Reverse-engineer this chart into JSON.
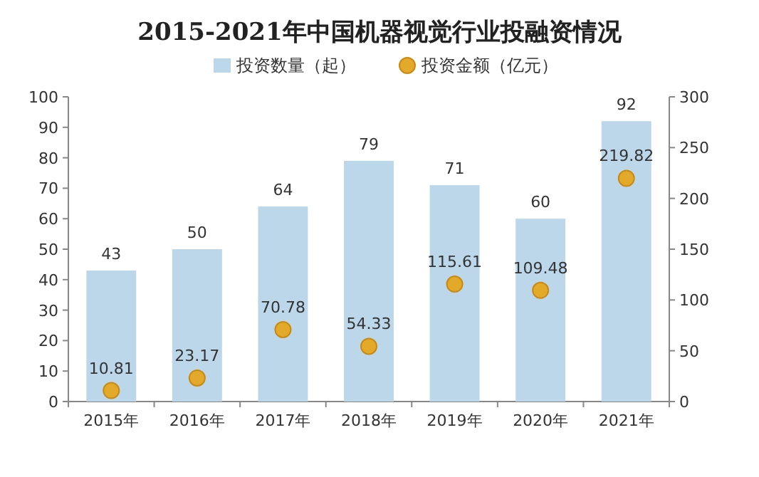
{
  "chart_data": {
    "type": "bar",
    "title": "2015-2021年中国机器视觉行业投融资情况",
    "categories": [
      "2015年",
      "2016年",
      "2017年",
      "2018年",
      "2019年",
      "2020年",
      "2021年"
    ],
    "series": [
      {
        "name": "投资数量（起）",
        "color": "#bcd7ea",
        "values": [
          43,
          50,
          64,
          79,
          71,
          60,
          92
        ]
      },
      {
        "name": "投资金额（亿元）",
        "type": "scatter",
        "axis": "y2",
        "color": "#e3a92a",
        "marker": "circle",
        "values": [
          10.81,
          23.17,
          70.78,
          54.33,
          115.61,
          109.48,
          219.82
        ]
      }
    ],
    "ylim": [
      0,
      100
    ],
    "yticks": [
      0,
      10,
      20,
      30,
      40,
      50,
      60,
      70,
      80,
      90,
      100
    ],
    "y2lim": [
      0,
      300
    ],
    "y2ticks": [
      0,
      50,
      100,
      150,
      200,
      250,
      300
    ],
    "data_labels": true,
    "legend": "top"
  }
}
